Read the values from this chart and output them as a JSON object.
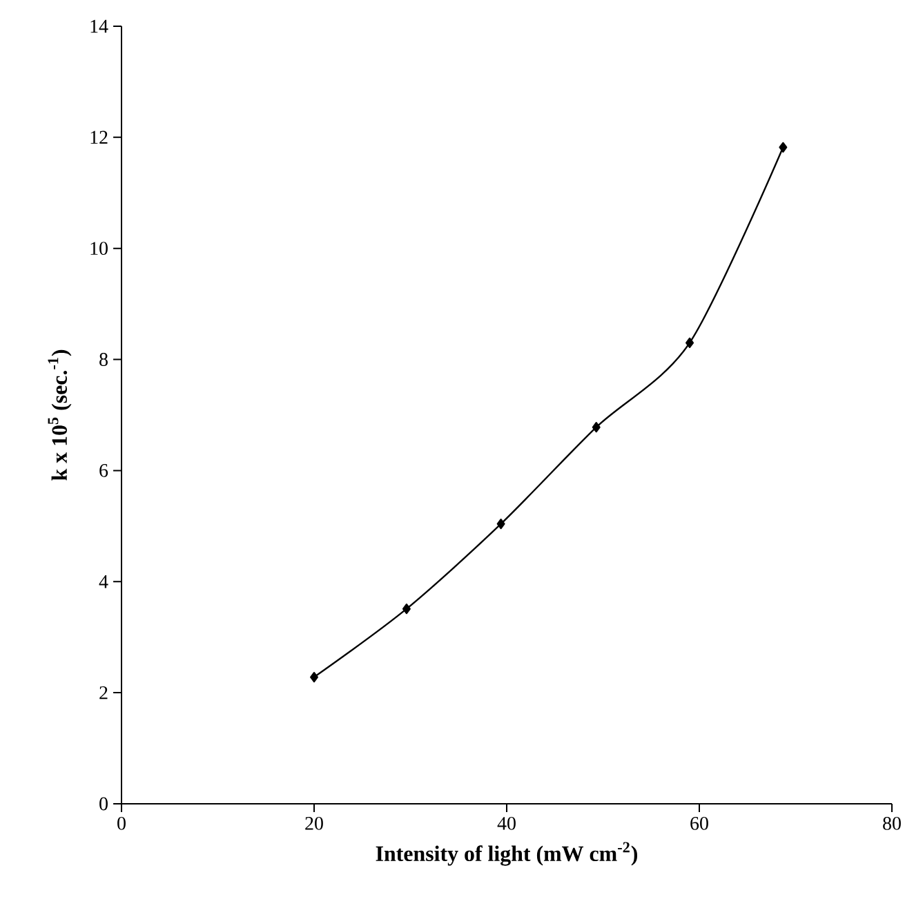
{
  "chart_data": {
    "type": "line",
    "xlabel": "**Intensity of light (mW cm$^{-2}$)**",
    "ylabel": "**k x 10$^{5}$ (sec.$^{-1}$)**",
    "x": [
      20,
      29.6,
      39.4,
      49.3,
      59,
      68.7
    ],
    "series": [
      {
        "color": "#000000",
        "values": [
          2.28,
          3.51,
          5.04,
          6.78,
          8.3,
          11.82
        ]
      }
    ],
    "xlim": [
      0,
      80
    ],
    "ylim": [
      0,
      14
    ],
    "xticks": [
      0,
      20,
      40,
      60,
      80
    ],
    "yticks": [
      0,
      2,
      4,
      6,
      8,
      10,
      12,
      14
    ],
    "marker": "diamond",
    "line_style": "solid"
  }
}
